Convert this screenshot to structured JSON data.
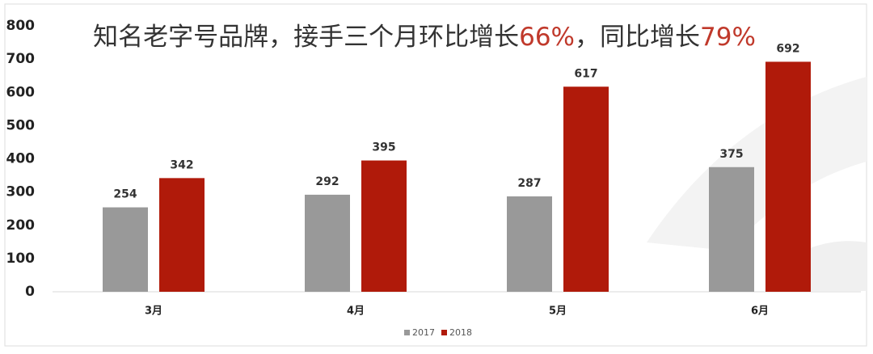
{
  "chart_data": {
    "type": "bar",
    "title_segments": [
      {
        "text": "知名老字号品牌，接手三个月环比增长",
        "color": "#333333"
      },
      {
        "text": "66%",
        "color": "#c0392b"
      },
      {
        "text": "，同比增长",
        "color": "#333333"
      },
      {
        "text": "79%",
        "color": "#c0392b"
      }
    ],
    "categories": [
      "3月",
      "4月",
      "5月",
      "6月"
    ],
    "series": [
      {
        "name": "2017",
        "color": "#999999",
        "values": [
          254,
          292,
          287,
          375
        ]
      },
      {
        "name": "2018",
        "color": "#b01a0a",
        "values": [
          342,
          395,
          617,
          692
        ]
      }
    ],
    "ylim": [
      0,
      800
    ],
    "yticks": [
      0,
      100,
      200,
      300,
      400,
      500,
      600,
      700,
      800
    ],
    "grid": false,
    "legend": "bottom"
  }
}
